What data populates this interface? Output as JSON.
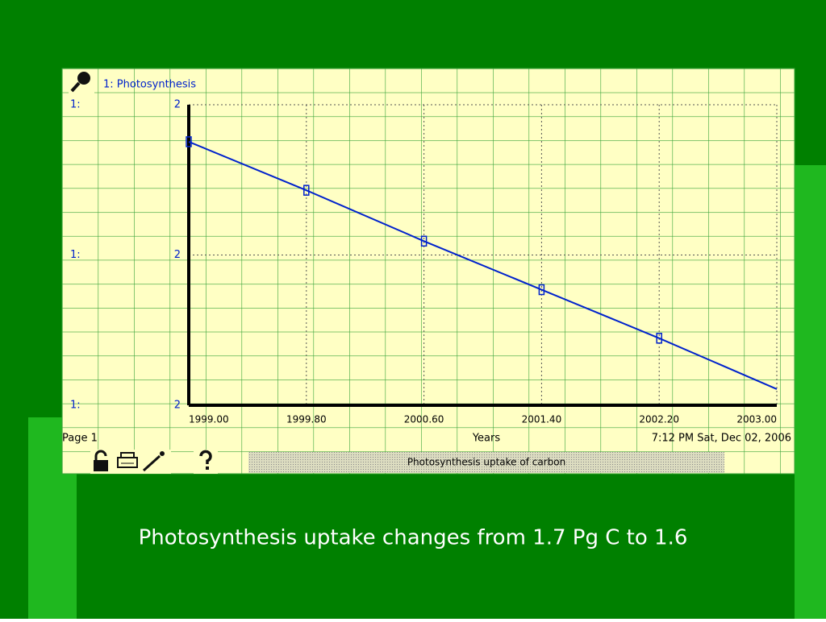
{
  "chart_data": {
    "type": "line",
    "title": "Photosynthesis uptake of carbon",
    "xlabel": "Years",
    "page_label": "Page 1",
    "timestamp": "7:12 PM   Sat, Dec 02, 2006",
    "ytick_series": "1:",
    "x": [
      1999,
      1999.8,
      2000.6,
      2001.4,
      2002.2,
      2003
    ],
    "series": [
      {
        "name": "1: Photosynthesis",
        "color": "#0022cc",
        "values": [
          1.704,
          1.683,
          1.661,
          1.64,
          1.619,
          1.597
        ]
      }
    ],
    "xlim": [
      1999,
      2003
    ],
    "xticks": [
      {
        "value": 1999,
        "label": "1999.00"
      },
      {
        "value": 1999.8,
        "label": "1999.80"
      },
      {
        "value": 2000.6,
        "label": "2000.60"
      },
      {
        "value": 2001.4,
        "label": "2001.40"
      },
      {
        "value": 2002.2,
        "label": "2002.20"
      },
      {
        "value": 2003,
        "label": "2003.00"
      }
    ],
    "ylim": [
      1.59,
      1.72
    ],
    "yticks": [
      {
        "value": 1.59,
        "label": "2"
      },
      {
        "value": 1.655,
        "label": "2"
      },
      {
        "value": 1.72,
        "label": "2"
      }
    ],
    "grid": true
  },
  "caption": "Photosynthesis uptake changes from 1.7 Pg C to 1.6"
}
